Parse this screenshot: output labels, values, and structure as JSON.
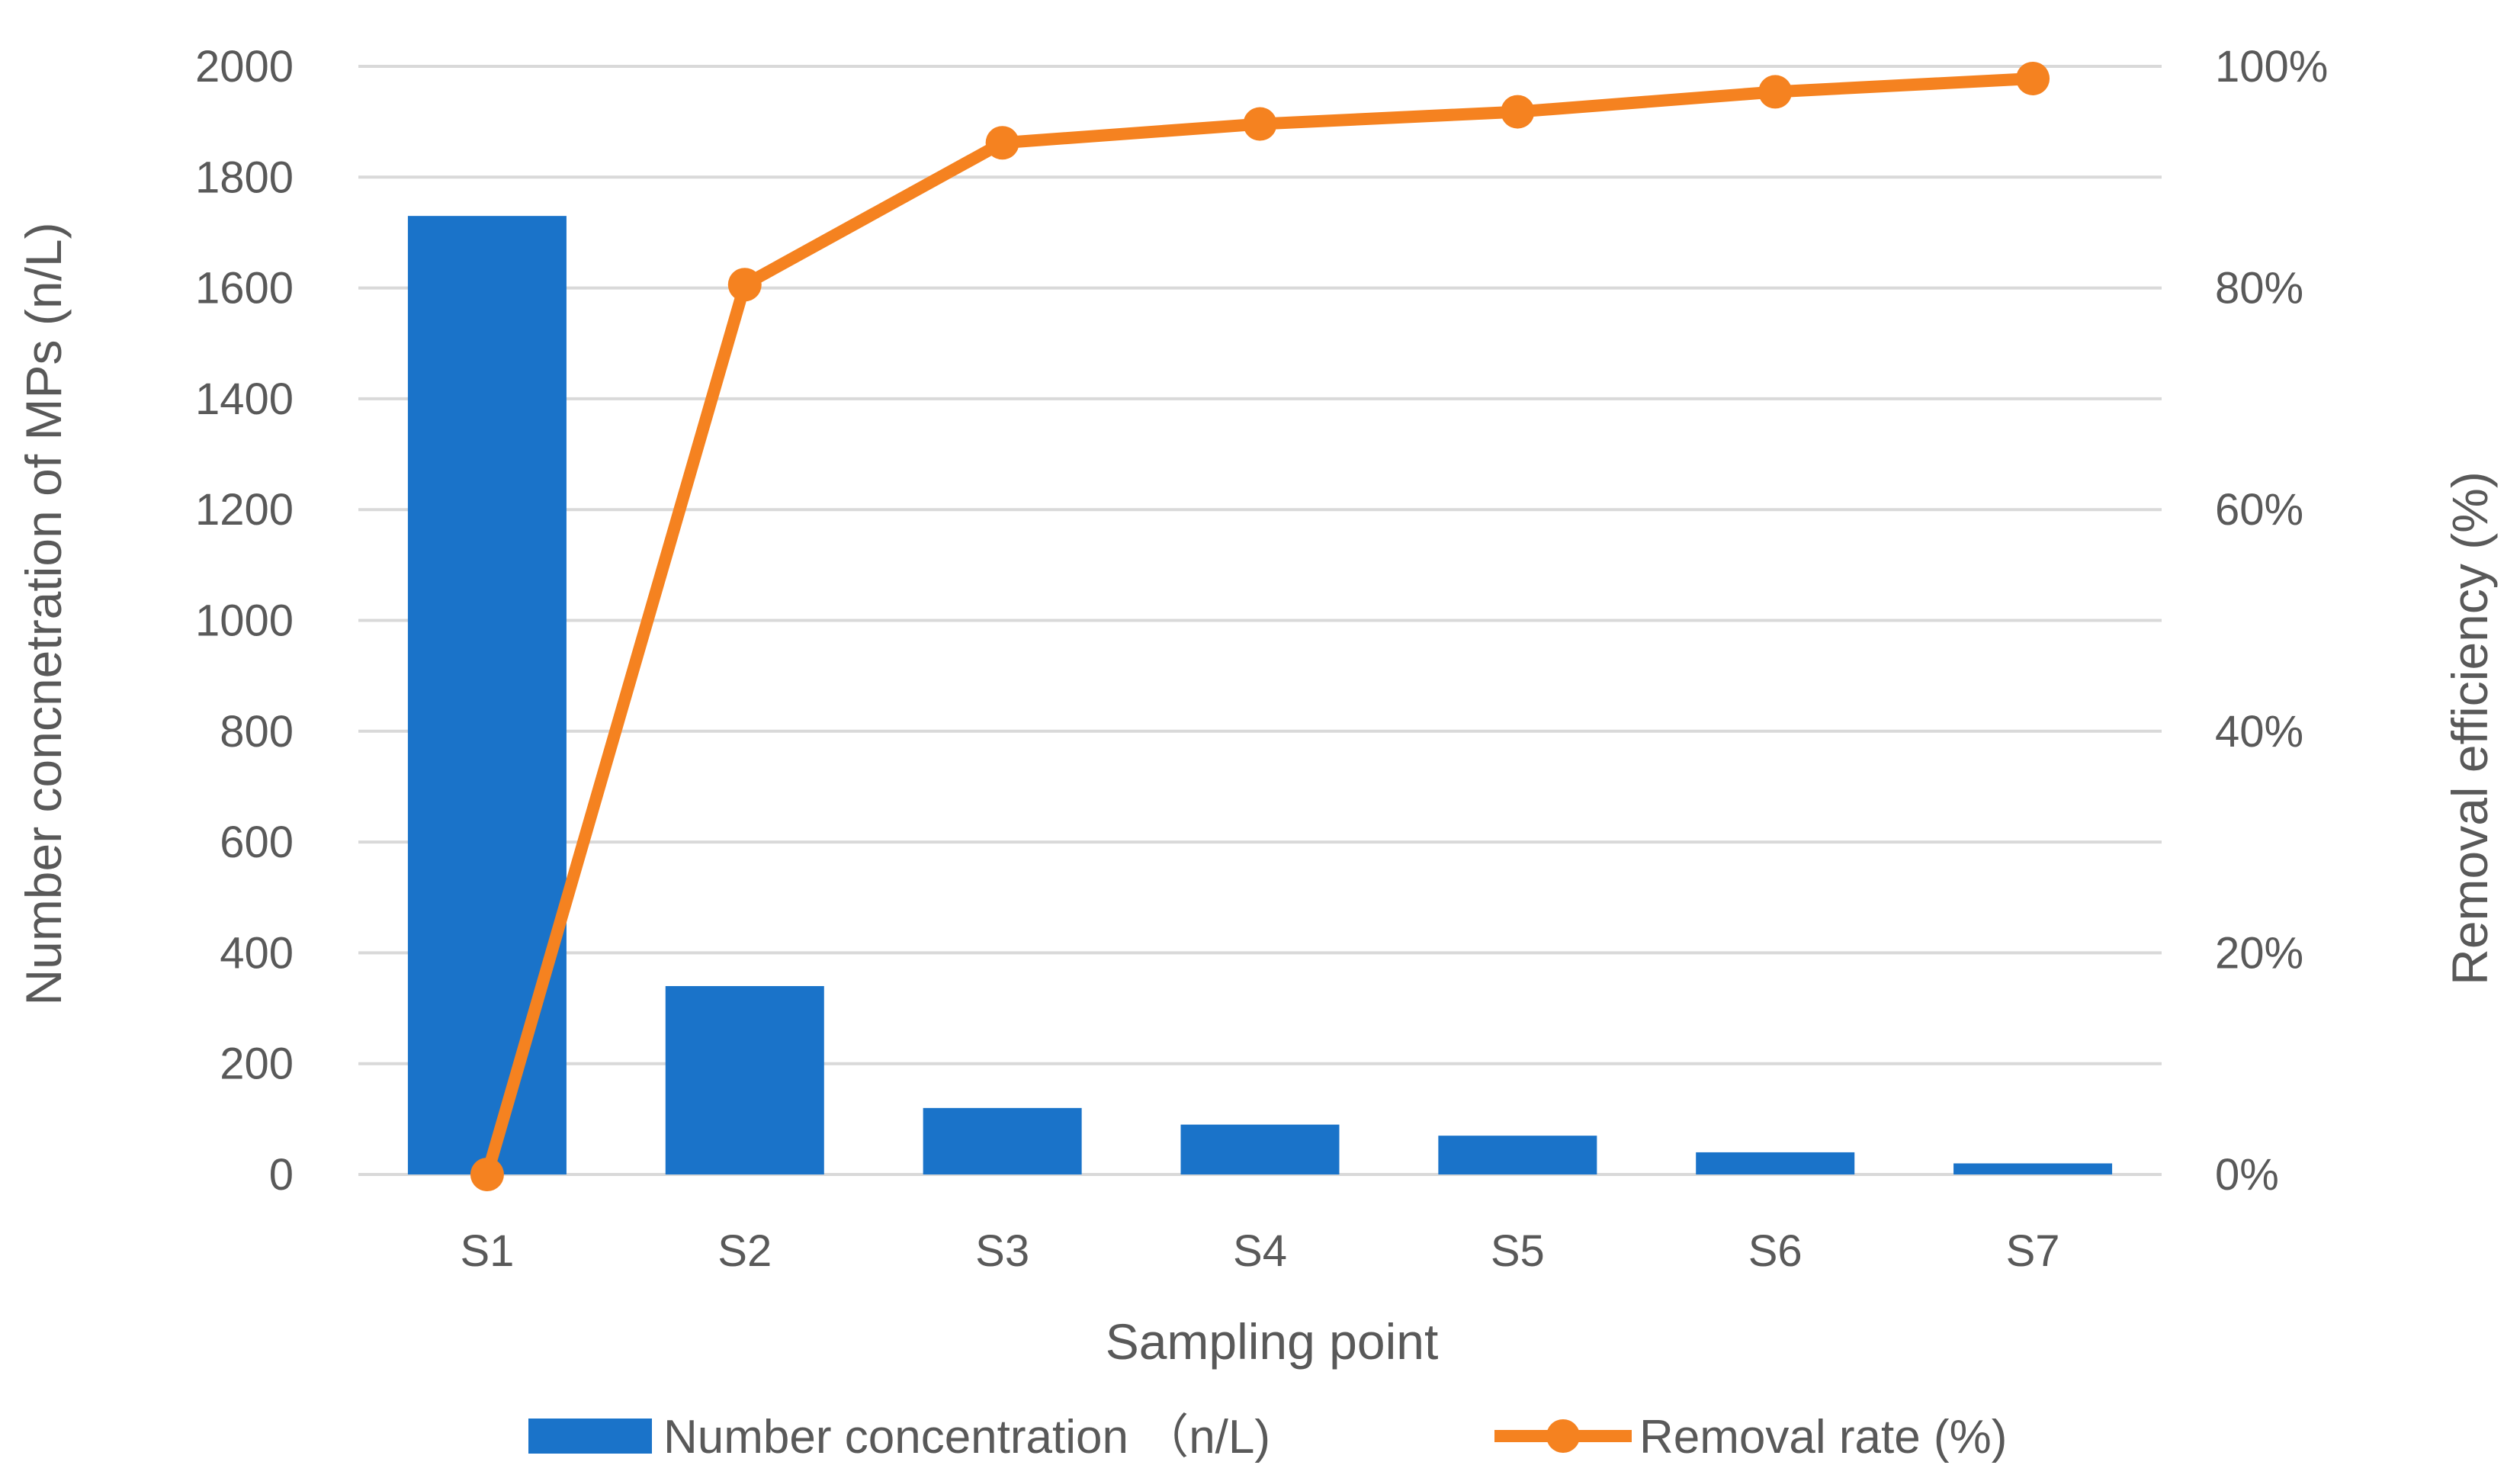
{
  "chart_data": {
    "type": "bar+line",
    "categories": [
      "S1",
      "S2",
      "S3",
      "S4",
      "S5",
      "S6",
      "S7"
    ],
    "xlabel": "Sampling point",
    "ylabel_left": "Number concnetration of MPs (n/L)",
    "ylabel_right": "Removal efficiency (%)",
    "ylim_left": [
      0,
      2000
    ],
    "yticks_left": [
      "0",
      "200",
      "400",
      "600",
      "800",
      "1000",
      "1200",
      "1400",
      "1600",
      "1800",
      "2000"
    ],
    "ylim_right": [
      0,
      100
    ],
    "yticks_right": [
      "0%",
      "20%",
      "40%",
      "60%",
      "80%",
      "100%"
    ],
    "grid": true,
    "legend_position": "bottom",
    "series": [
      {
        "name": "Number concentration （n/L)",
        "type": "bar",
        "axis": "left",
        "color": "#1a73c9",
        "values": [
          1730,
          340,
          120,
          90,
          70,
          40,
          20
        ]
      },
      {
        "name": "Removal rate (%)",
        "type": "line",
        "axis": "right",
        "color": "#f58220",
        "values": [
          0,
          80.3,
          93.1,
          94.8,
          95.9,
          97.7,
          98.9
        ]
      }
    ]
  }
}
